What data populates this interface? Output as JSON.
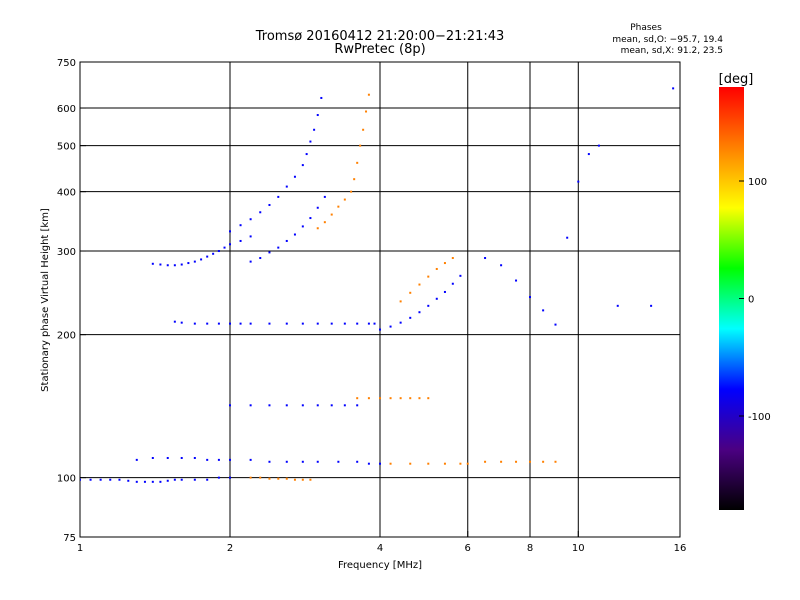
{
  "chart_data": {
    "type": "scatter",
    "title": "Tromsø 20160412 21:20:00−21:21:43",
    "subtitle": "RwPretec (8p)",
    "xlabel": "Frequency [MHz]",
    "ylabel": "Stationary phase Virtual Height [km]",
    "x_scale": "log",
    "y_scale": "log",
    "xlim": [
      1,
      16
    ],
    "ylim": [
      75,
      750
    ],
    "x_ticks": [
      {
        "v": 1,
        "label": "1"
      },
      {
        "v": 2,
        "label": "2"
      },
      {
        "v": 4,
        "label": "4"
      },
      {
        "v": 6,
        "label": "6"
      },
      {
        "v": 8,
        "label": "8"
      },
      {
        "v": 10,
        "label": "10"
      },
      {
        "v": 16,
        "label": "16"
      }
    ],
    "y_ticks": [
      {
        "v": 75,
        "label": "75"
      },
      {
        "v": 100,
        "label": "100"
      },
      {
        "v": 200,
        "label": "200"
      },
      {
        "v": 300,
        "label": "300"
      },
      {
        "v": 400,
        "label": "400"
      },
      {
        "v": 500,
        "label": "500"
      },
      {
        "v": 600,
        "label": "600"
      },
      {
        "v": 750,
        "label": "750"
      }
    ],
    "grid_x": [
      2,
      4,
      6,
      8,
      10
    ],
    "grid_y": [
      100,
      200,
      300,
      400,
      500,
      600
    ],
    "grid": true,
    "stats": {
      "title": "Phases",
      "lines": [
        "mean, sd,O: −95.7, 19.4",
        "mean, sd,X:  91.2, 23.5"
      ]
    },
    "colorbar": {
      "label": "[deg]",
      "range": [
        -180,
        180
      ],
      "ticks": [
        {
          "v": 100,
          "label": "100"
        },
        {
          "v": 0,
          "label": "0"
        },
        {
          "v": -100,
          "label": "-100"
        }
      ],
      "colors": [
        "#000000",
        "#4b0082",
        "#0000ff",
        "#00ffff",
        "#00ff00",
        "#ffff00",
        "#ff8000",
        "#ff0000"
      ]
    },
    "series": [
      {
        "phase": -100,
        "x": [
          1.0,
          1.05,
          1.1,
          1.15,
          1.2,
          1.25,
          1.3,
          1.35,
          1.4,
          1.45,
          1.5,
          1.55,
          1.6,
          1.7,
          1.8,
          1.9,
          2.0
        ],
        "y": [
          99,
          99,
          99,
          99,
          99,
          98.5,
          98,
          98,
          98,
          98,
          98.5,
          99,
          99,
          99,
          99,
          100,
          100
        ]
      },
      {
        "phase": -95,
        "x": [
          1.3,
          1.4,
          1.5,
          1.6,
          1.7,
          1.8,
          1.9,
          2.0,
          2.2,
          2.4,
          2.6,
          2.8,
          3.0,
          3.3,
          3.6,
          3.8,
          4.0
        ],
        "y": [
          109,
          110,
          110,
          110,
          110,
          109,
          109,
          109,
          109,
          108,
          108,
          108,
          108,
          108,
          108,
          107,
          107
        ]
      },
      {
        "phase": -95,
        "x": [
          1.4,
          1.45,
          1.5,
          1.55,
          1.6,
          1.65,
          1.7,
          1.75,
          1.8,
          1.85,
          1.9,
          1.95,
          2.0,
          2.1,
          2.2
        ],
        "y": [
          282,
          281,
          280,
          280,
          281,
          283,
          285,
          288,
          292,
          296,
          300,
          305,
          310,
          315,
          322
        ]
      },
      {
        "phase": -90,
        "x": [
          2.0,
          2.1,
          2.2,
          2.3,
          2.4,
          2.5,
          2.6,
          2.7,
          2.8,
          2.85,
          2.9,
          2.95,
          3.0,
          3.05
        ],
        "y": [
          330,
          340,
          350,
          362,
          375,
          390,
          410,
          430,
          455,
          480,
          510,
          540,
          580,
          630
        ]
      },
      {
        "phase": -95,
        "x": [
          2.2,
          2.3,
          2.4,
          2.5,
          2.6,
          2.7,
          2.8,
          2.9,
          3.0,
          3.1
        ],
        "y": [
          285,
          290,
          298,
          305,
          315,
          325,
          338,
          352,
          370,
          390
        ]
      },
      {
        "phase": -95,
        "x": [
          1.55,
          1.6,
          1.7,
          1.8,
          1.9,
          2.0,
          2.1,
          2.2,
          2.4,
          2.6,
          2.8,
          3.0,
          3.2,
          3.4,
          3.6,
          3.8,
          3.9
        ],
        "y": [
          213,
          212,
          211,
          211,
          211,
          211,
          211,
          211,
          211,
          211,
          211,
          211,
          211,
          211,
          211,
          211,
          211
        ]
      },
      {
        "phase": 110,
        "x": [
          3.0,
          3.1,
          3.2,
          3.3,
          3.4,
          3.5,
          3.55,
          3.6,
          3.65,
          3.7,
          3.75,
          3.8
        ],
        "y": [
          335,
          345,
          358,
          372,
          385,
          400,
          425,
          460,
          500,
          540,
          590,
          640
        ]
      },
      {
        "phase": -100,
        "x": [
          4.0,
          4.2,
          4.4,
          4.6,
          4.8,
          5.0,
          5.2,
          5.4,
          5.6,
          5.8
        ],
        "y": [
          205,
          208,
          212,
          217,
          223,
          230,
          238,
          246,
          256,
          266
        ]
      },
      {
        "phase": 140,
        "x": [
          4.4,
          4.6,
          4.8,
          5.0,
          5.2,
          5.4,
          5.6
        ],
        "y": [
          235,
          245,
          255,
          265,
          275,
          283,
          290
        ]
      },
      {
        "phase": 110,
        "x": [
          4.2,
          4.6,
          5.0,
          5.4,
          5.8,
          6.0,
          6.5,
          7.0,
          7.5,
          8.0,
          8.5,
          9.0
        ],
        "y": [
          107,
          107,
          107,
          107,
          107,
          107,
          108,
          108,
          108,
          108,
          108,
          108
        ]
      },
      {
        "phase": -95,
        "x": [
          2.0,
          2.2,
          2.4,
          2.6,
          2.8,
          3.0,
          3.2,
          3.4,
          3.6
        ],
        "y": [
          142,
          142,
          142,
          142,
          142,
          142,
          142,
          142,
          142
        ]
      },
      {
        "phase": 115,
        "x": [
          2.2,
          2.3,
          2.4,
          2.5,
          2.6,
          2.7,
          2.8,
          2.9
        ],
        "y": [
          100,
          100,
          99.5,
          99.5,
          99.5,
          99,
          99,
          99
        ]
      },
      {
        "phase": 110,
        "x": [
          3.6,
          3.8,
          4.0,
          4.2,
          4.4,
          4.6,
          4.8,
          5.0
        ],
        "y": [
          147,
          147,
          147,
          147,
          147,
          147,
          147,
          147
        ]
      },
      {
        "phase": -80,
        "x": [
          6.5,
          7.0,
          7.5,
          8.0,
          8.5,
          9.0,
          9.5,
          10.0,
          10.5,
          11.0,
          12.0,
          14.0,
          15.5
        ],
        "y": [
          290,
          280,
          260,
          240,
          225,
          210,
          320,
          420,
          480,
          500,
          230,
          230,
          660
        ]
      }
    ]
  }
}
